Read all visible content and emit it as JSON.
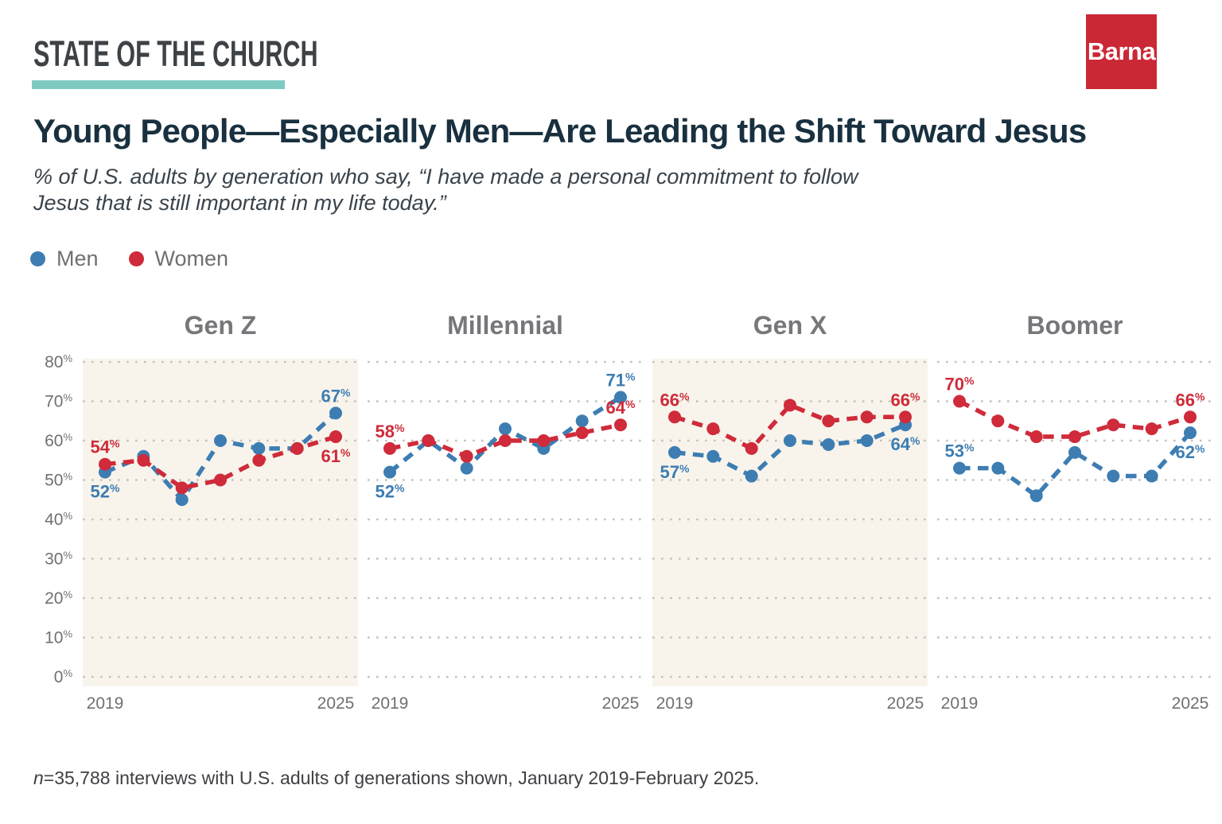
{
  "header": {
    "brand": "STATE OF THE CHURCH",
    "logo_text": "Barna",
    "title": "Young People—Especially Men—Are Leading the Shift Toward Jesus",
    "subtitle_lines": [
      "% of U.S. adults by generation who say, “I have made a personal commitment to follow",
      "Jesus that is still important in my life today.”"
    ]
  },
  "legend": [
    {
      "label": "Men",
      "color": "#3d7db2"
    },
    {
      "label": "Women",
      "color": "#cf2b3a"
    }
  ],
  "footnote": {
    "prefix_italic": "n",
    "text": "=35,788 interviews with U.S. adults of generations shown, January 2019-February 2025."
  },
  "colors": {
    "men": "#3d7db2",
    "women": "#cf2b3a",
    "panel_shade": "#f8f4ec",
    "grid_dots": "#c6c2bb",
    "axis_text": "#6f7073",
    "panel_title": "#76777a",
    "teal_accent": "#7fc9c3",
    "logo_red": "#cb2836",
    "title_navy": "#18303f"
  },
  "chart_data": {
    "type": "line",
    "x": [
      2019,
      2020,
      2021,
      2022,
      2023,
      2024,
      2025
    ],
    "xtick_labels": [
      "2019",
      "2025"
    ],
    "ylim": [
      0,
      80
    ],
    "ytick_step": 10,
    "ytick_suffix": "%",
    "grid": "dotted horizontal gridlines every 10%",
    "legend_position": "top-left",
    "line_style": "dashed with round markers",
    "panels": [
      {
        "title": "Gen Z",
        "shaded": true,
        "series": [
          {
            "name": "Men",
            "color": "#3d7db2",
            "values": [
              52,
              56,
              45,
              60,
              58,
              58,
              67
            ],
            "first_label": {
              "value": 52,
              "pos": "below"
            },
            "last_label": {
              "value": 67,
              "pos": "above"
            }
          },
          {
            "name": "Women",
            "color": "#cf2b3a",
            "values": [
              54,
              55,
              48,
              50,
              55,
              58,
              61
            ],
            "first_label": {
              "value": 54,
              "pos": "above"
            },
            "last_label": {
              "value": 61,
              "pos": "below"
            }
          }
        ]
      },
      {
        "title": "Millennial",
        "shaded": false,
        "series": [
          {
            "name": "Men",
            "color": "#3d7db2",
            "values": [
              52,
              60,
              53,
              63,
              58,
              65,
              71
            ],
            "first_label": {
              "value": 52,
              "pos": "below"
            },
            "last_label": {
              "value": 71,
              "pos": "above"
            }
          },
          {
            "name": "Women",
            "color": "#cf2b3a",
            "values": [
              58,
              60,
              56,
              60,
              60,
              62,
              64
            ],
            "first_label": {
              "value": 58,
              "pos": "above"
            },
            "last_label": {
              "value": 64,
              "pos": "above"
            }
          }
        ]
      },
      {
        "title": "Gen X",
        "shaded": true,
        "series": [
          {
            "name": "Men",
            "color": "#3d7db2",
            "values": [
              57,
              56,
              51,
              60,
              59,
              60,
              64
            ],
            "first_label": {
              "value": 57,
              "pos": "below"
            },
            "last_label": {
              "value": 64,
              "pos": "below"
            }
          },
          {
            "name": "Women",
            "color": "#cf2b3a",
            "values": [
              66,
              63,
              58,
              69,
              65,
              66,
              66
            ],
            "first_label": {
              "value": 66,
              "pos": "above"
            },
            "last_label": {
              "value": 66,
              "pos": "above"
            }
          }
        ]
      },
      {
        "title": "Boomer",
        "shaded": false,
        "series": [
          {
            "name": "Men",
            "color": "#3d7db2",
            "values": [
              53,
              53,
              46,
              57,
              51,
              51,
              62
            ],
            "first_label": {
              "value": 53,
              "pos": "above"
            },
            "last_label": {
              "value": 62,
              "pos": "below"
            }
          },
          {
            "name": "Women",
            "color": "#cf2b3a",
            "values": [
              70,
              65,
              61,
              61,
              64,
              63,
              66
            ],
            "first_label": {
              "value": 70,
              "pos": "above"
            },
            "last_label": {
              "value": 66,
              "pos": "above"
            }
          }
        ]
      }
    ]
  }
}
